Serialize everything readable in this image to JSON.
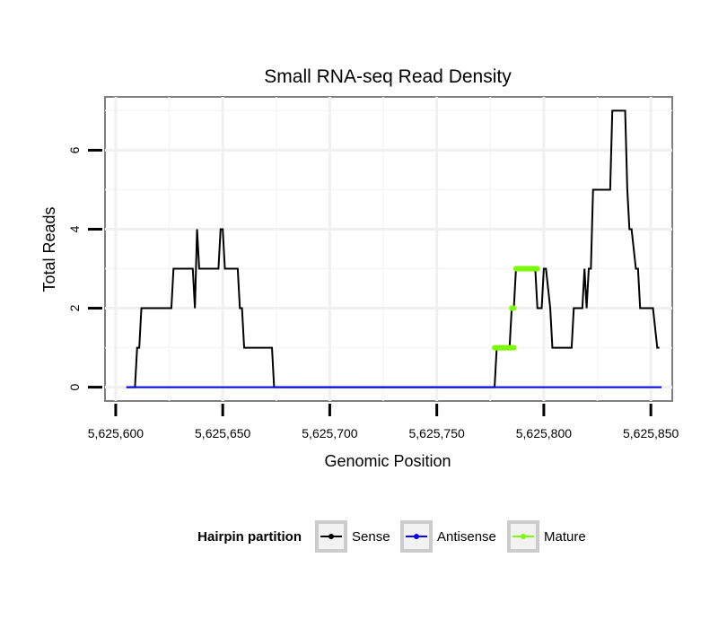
{
  "chart_data": {
    "type": "line",
    "title": "Small RNA-seq Read Density",
    "xlabel": "Genomic Position",
    "ylabel": "Total Reads",
    "xlim": [
      5625595,
      5625860
    ],
    "ylim": [
      -0.35,
      7.35
    ],
    "grid": true,
    "x_ticks": [
      5625600,
      5625650,
      5625700,
      5625750,
      5625800,
      5625850
    ],
    "x_tick_labels": [
      "5,625,600",
      "5,625,650",
      "5,625,700",
      "5,625,750",
      "5,625,800",
      "5,625,850"
    ],
    "y_ticks": [
      0,
      2,
      4,
      6
    ],
    "y_tick_labels": [
      "0",
      "2",
      "4",
      "6"
    ],
    "legend": {
      "title": "Hairpin partition",
      "position": "bottom",
      "entries": [
        {
          "name": "Sense",
          "color": "#000000"
        },
        {
          "name": "Antisense",
          "color": "#0000ff"
        },
        {
          "name": "Mature",
          "color": "#7cfc00"
        }
      ]
    },
    "series": [
      {
        "name": "Sense",
        "color": "#000000",
        "x": [
          5625605,
          5625609,
          5625610,
          5625611,
          5625612,
          5625626,
          5625627,
          5625636,
          5625637,
          5625638,
          5625639,
          5625640,
          5625648,
          5625649,
          5625650,
          5625651,
          5625652,
          5625657,
          5625658,
          5625659,
          5625660,
          5625673,
          5625674,
          5625777,
          5625778,
          5625784,
          5625785,
          5625786,
          5625787,
          5625796,
          5625797,
          5625799,
          5625800,
          5625801,
          5625803,
          5625804,
          5625813,
          5625814,
          5625818,
          5625819,
          5625820,
          5625821,
          5625822,
          5625823,
          5625824,
          5625831,
          5625832,
          5625838,
          5625839,
          5625840,
          5625841,
          5625843,
          5625844,
          5625845,
          5625846,
          5625850,
          5625851,
          5625853,
          5625854
        ],
        "y": [
          0,
          0,
          1,
          1,
          2,
          2,
          3,
          3,
          2,
          4,
          3,
          3,
          3,
          4,
          4,
          3,
          3,
          3,
          2,
          2,
          1,
          1,
          0,
          0,
          1,
          1,
          2,
          2,
          3,
          3,
          2,
          2,
          3,
          3,
          2,
          1,
          1,
          2,
          2,
          3,
          2,
          3,
          3,
          5,
          5,
          5,
          7,
          7,
          5,
          4,
          4,
          3,
          3,
          2,
          2,
          2,
          2,
          1,
          1
        ]
      },
      {
        "name": "Antisense",
        "color": "#0000ff",
        "x": [
          5625605,
          5625855
        ],
        "y": [
          0,
          0
        ]
      },
      {
        "name": "Mature",
        "color": "#7cfc00",
        "segments": [
          {
            "x": [
              5625777,
              5625786
            ],
            "y": [
              1,
              1
            ]
          },
          {
            "x": [
              5625785,
              5625786
            ],
            "y": [
              2,
              2
            ]
          },
          {
            "x": [
              5625787,
              5625797
            ],
            "y": [
              3,
              3
            ]
          }
        ]
      }
    ]
  }
}
